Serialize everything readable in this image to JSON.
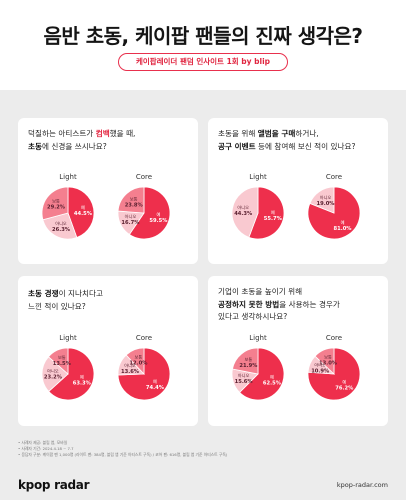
{
  "header": {
    "title": "음반 초동, 케이팝 팬들의 진짜 생각은?",
    "subtitle": "케이팝레이더 팬덤 인사이트 1회 by blip"
  },
  "colors": {
    "yes": "#ee2f4c",
    "no": "#f47f8f",
    "unsure": "#f9c9d0",
    "accent": "#e3223e"
  },
  "labels": {
    "light": "Light",
    "core": "Core"
  },
  "questions": [
    {
      "line1_pre": "덕질하는 아티스트가 ",
      "line1_bold": "컴백",
      "line1_post": "했을 때,",
      "line2_bold": "초동",
      "line2_post": "에 신경을 쓰시나요?"
    },
    {
      "line1_pre": "초동을 위해 ",
      "line1_bold": "앨범을 구매",
      "line1_post": "하거나,",
      "line2_bold": "공구 이벤트",
      "line2_post": " 등에 참여해 보신 적이 있나요?"
    },
    {
      "line1_pre": "",
      "line1_bold": "초동 경쟁",
      "line1_post": "이 지나치다고",
      "line2_bold": "",
      "line2_post": "느낀 적이 있나요?"
    },
    {
      "line1_pre": "기업이 초동을 높이기 위해",
      "line1_bold": "",
      "line1_post": "",
      "line2_bold": "공정하지 못한 방법",
      "line2_post": "을 사용하는 경우가",
      "line3": "있다고 생각하시나요?"
    }
  ],
  "chart_data": [
    {
      "type": "pie",
      "question_index": 0,
      "title": "Light",
      "slices": [
        {
          "label": "예",
          "value": 44.5
        },
        {
          "label": "아니오",
          "value": 26.3
        },
        {
          "label": "보통",
          "value": 29.2
        }
      ]
    },
    {
      "type": "pie",
      "question_index": 0,
      "title": "Core",
      "slices": [
        {
          "label": "예",
          "value": 59.5
        },
        {
          "label": "아니오",
          "value": 16.7
        },
        {
          "label": "보통",
          "value": 23.8
        }
      ]
    },
    {
      "type": "pie",
      "question_index": 1,
      "title": "Light",
      "slices": [
        {
          "label": "예",
          "value": 55.7
        },
        {
          "label": "아니오",
          "value": 44.3
        }
      ]
    },
    {
      "type": "pie",
      "question_index": 1,
      "title": "Core",
      "slices": [
        {
          "label": "예",
          "value": 81.0
        },
        {
          "label": "아니오",
          "value": 19.0
        }
      ]
    },
    {
      "type": "pie",
      "question_index": 2,
      "title": "Light",
      "slices": [
        {
          "label": "예",
          "value": 63.3
        },
        {
          "label": "아니오",
          "value": 23.2
        },
        {
          "label": "보통",
          "value": 13.5
        }
      ]
    },
    {
      "type": "pie",
      "question_index": 2,
      "title": "Core",
      "slices": [
        {
          "label": "예",
          "value": 74.4
        },
        {
          "label": "아니오",
          "value": 13.6
        },
        {
          "label": "보통",
          "value": 12.0
        }
      ]
    },
    {
      "type": "pie",
      "question_index": 3,
      "title": "Light",
      "slices": [
        {
          "label": "예",
          "value": 62.5
        },
        {
          "label": "아니오",
          "value": 15.6
        },
        {
          "label": "보통",
          "value": 21.9
        }
      ]
    },
    {
      "type": "pie",
      "question_index": 3,
      "title": "Core",
      "slices": [
        {
          "label": "예",
          "value": 76.2
        },
        {
          "label": "아니오",
          "value": 10.9
        },
        {
          "label": "보통",
          "value": 13.0
        }
      ]
    }
  ],
  "notes": [
    "• 사례자 제공: 블립 앱, 모바일",
    "• 사례자 기간: 2024.4.18 ~ 7.7",
    "• 응답자 구분: 케이팝 팬 1,000명 (라이트 팬: 384명, 블립 앱 기준 아티스트 구독) / 코어 팬: 616명, 블립 앱 기준 아티스트 구독)"
  ],
  "footer": {
    "logo": "kpop radar",
    "site": "kpop-radar.com"
  }
}
